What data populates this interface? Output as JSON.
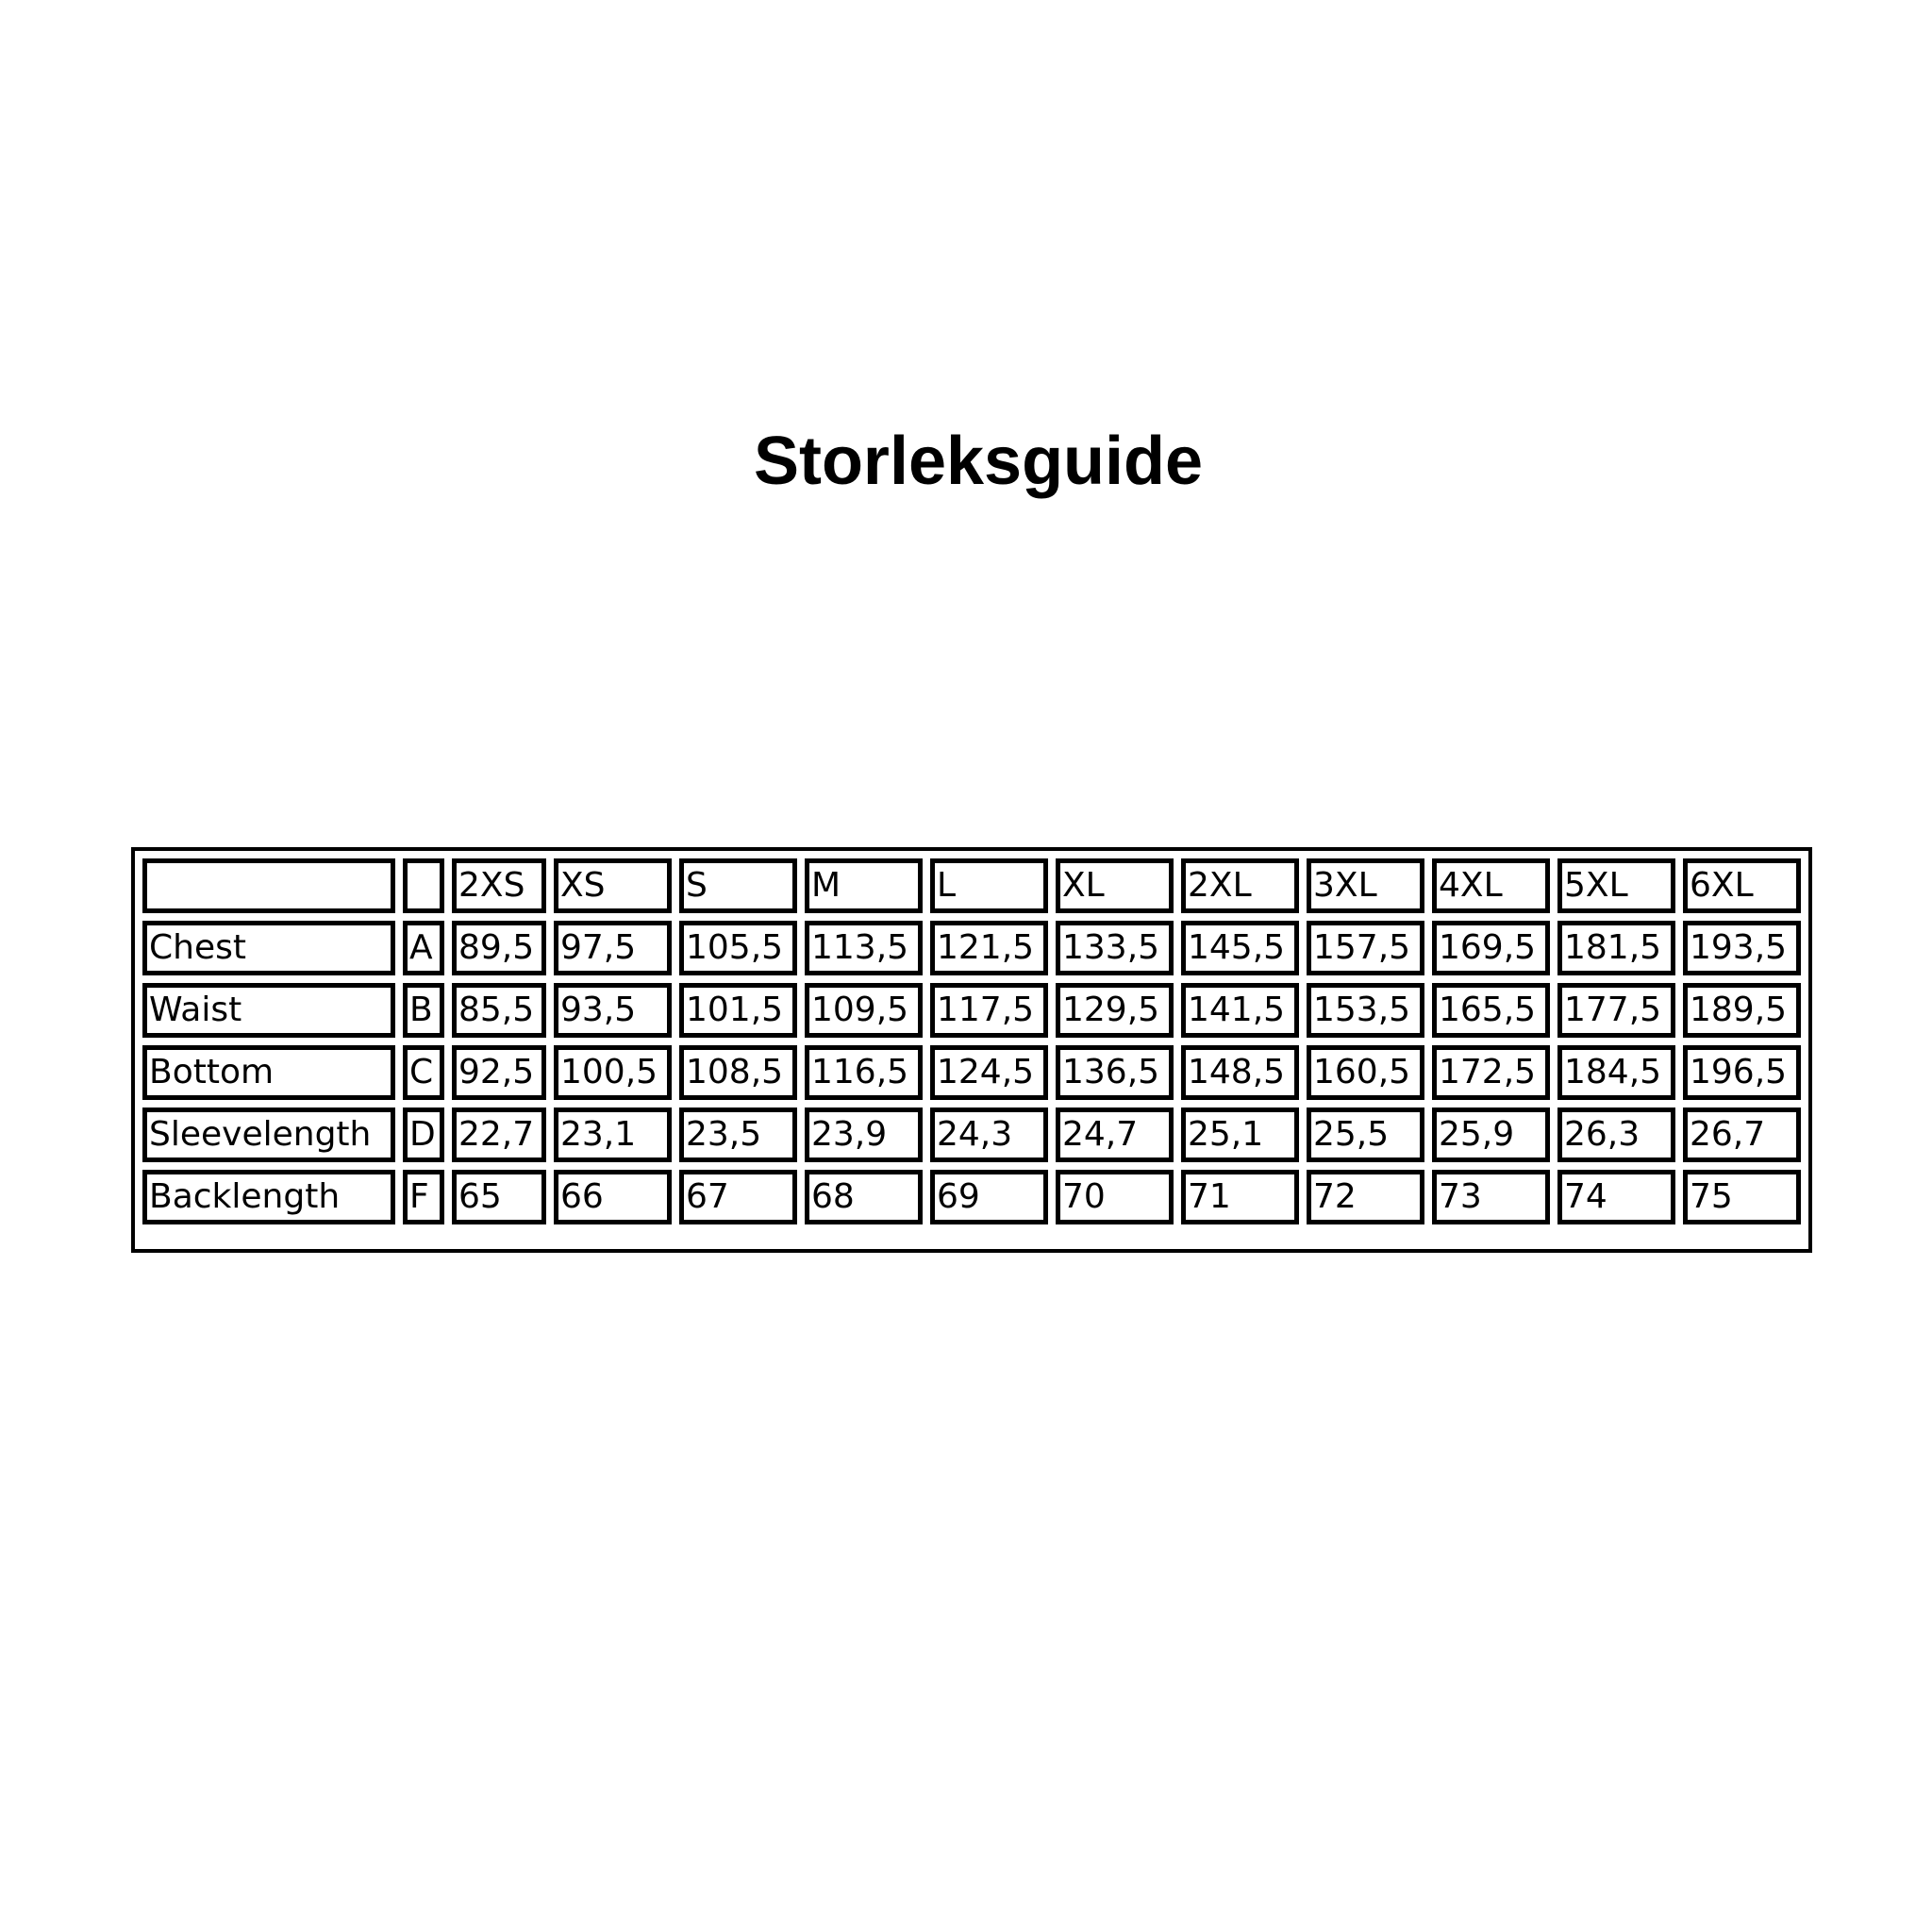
{
  "title": "Storleksguide",
  "table": {
    "header": [
      "",
      "",
      "2XS",
      "XS",
      "S",
      "M",
      "L",
      "XL",
      "2XL",
      "3XL",
      "4XL",
      "5XL",
      "6XL"
    ],
    "rows": [
      [
        "Chest",
        "A",
        "89,5",
        "97,5",
        "105,5",
        "113,5",
        "121,5",
        "133,5",
        "145,5",
        "157,5",
        "169,5",
        "181,5",
        "193,5"
      ],
      [
        "Waist",
        "B",
        "85,5",
        "93,5",
        "101,5",
        "109,5",
        "117,5",
        "129,5",
        "141,5",
        "153,5",
        "165,5",
        "177,5",
        "189,5"
      ],
      [
        "Bottom",
        "C",
        "92,5",
        "100,5",
        "108,5",
        "116,5",
        "124,5",
        "136,5",
        "148,5",
        "160,5",
        "172,5",
        "184,5",
        "196,5"
      ],
      [
        "Sleevelength",
        "D",
        "22,7",
        "23,1",
        "23,5",
        "23,9",
        "24,3",
        "24,7",
        "25,1",
        "25,5",
        "25,9",
        "26,3",
        "26,7"
      ],
      [
        "Backlength",
        "F",
        "65",
        "66",
        "67",
        "68",
        "69",
        "70",
        "71",
        "72",
        "73",
        "74",
        "75"
      ]
    ]
  }
}
